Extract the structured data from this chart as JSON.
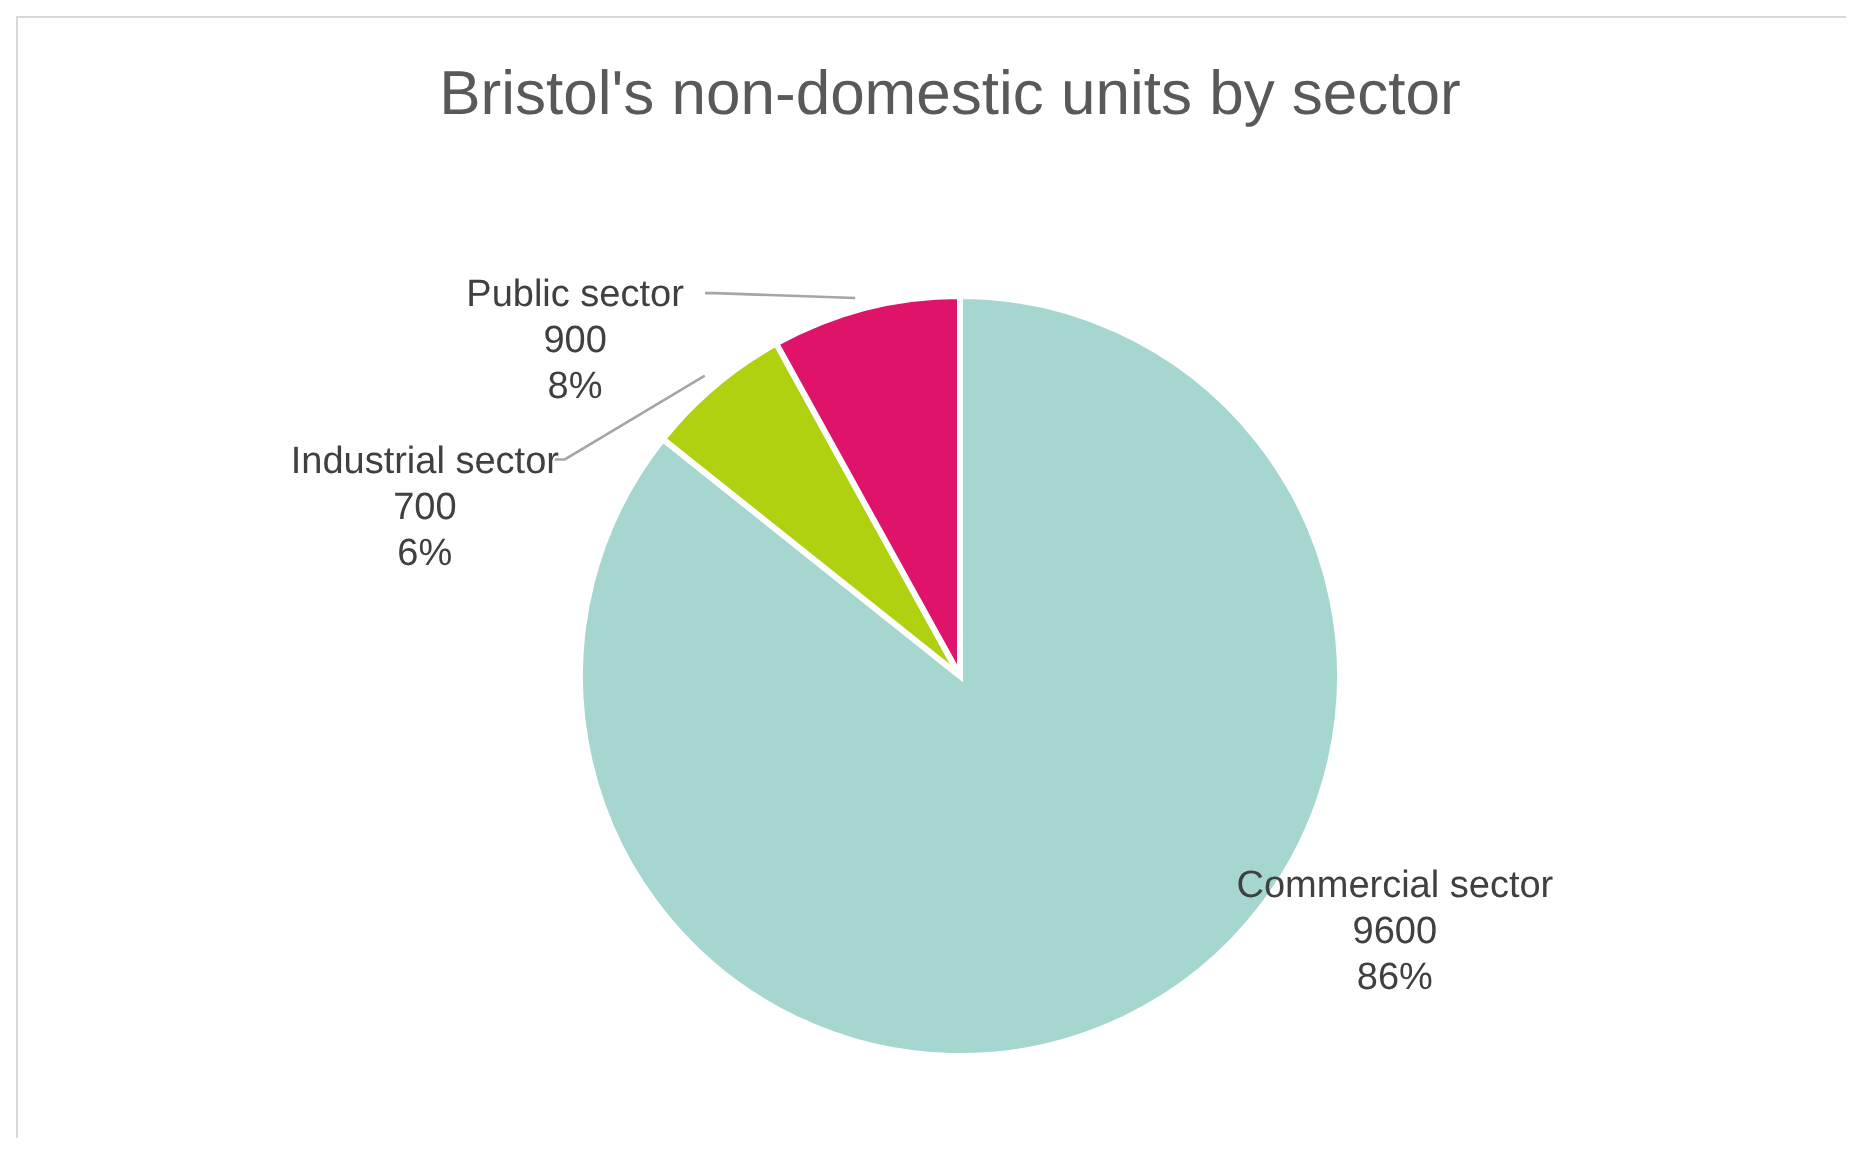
{
  "chart_data": {
    "type": "pie",
    "title": "Bristol's non-domestic units by sector",
    "categories": [
      "Commercial sector",
      "Industrial sector",
      "Public sector"
    ],
    "values": [
      9600,
      700,
      900
    ],
    "colors": [
      "#a5d6d0",
      "#b0d10f",
      "#e0136a"
    ],
    "value_labels": [
      "9600\n86%",
      "700\n6%",
      "900\n8%"
    ],
    "legend": false
  }
}
